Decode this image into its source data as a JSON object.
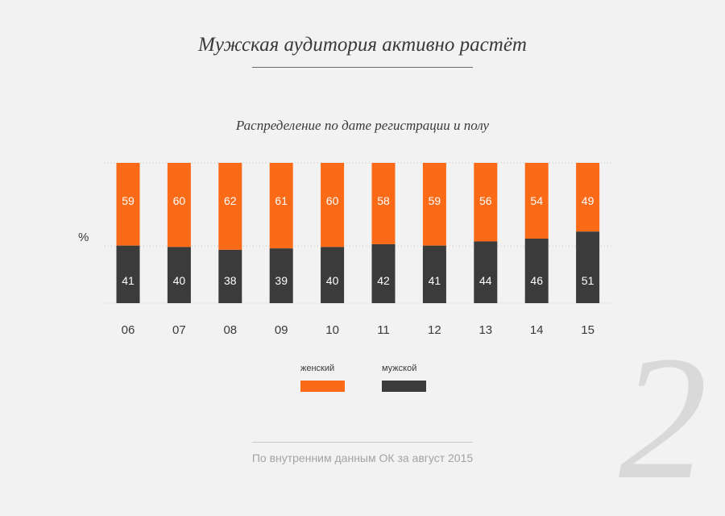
{
  "colors": {
    "female": "#fa6a17",
    "male": "#3b3b3b",
    "background": "#f2f2f2"
  },
  "header": {
    "title": "Мужская аудитория активно растёт"
  },
  "chart_data": {
    "type": "bar",
    "stacked": true,
    "title": "Распределение по дате регистрации и полу",
    "ylabel": "%",
    "xlabel": "",
    "ylim": [
      0,
      100
    ],
    "categories": [
      "06",
      "07",
      "08",
      "09",
      "10",
      "11",
      "12",
      "13",
      "14",
      "15"
    ],
    "series": [
      {
        "name": "мужской",
        "values": [
          41,
          40,
          38,
          39,
          40,
          42,
          41,
          44,
          46,
          51
        ]
      },
      {
        "name": "женский",
        "values": [
          59,
          60,
          62,
          61,
          60,
          58,
          59,
          56,
          54,
          49
        ]
      }
    ],
    "legend": [
      "женский",
      "мужской"
    ],
    "legend_position": "bottom",
    "grid": true
  },
  "footer": {
    "source": "По внутренним данным ОК за август 2015"
  },
  "page_number": "2"
}
